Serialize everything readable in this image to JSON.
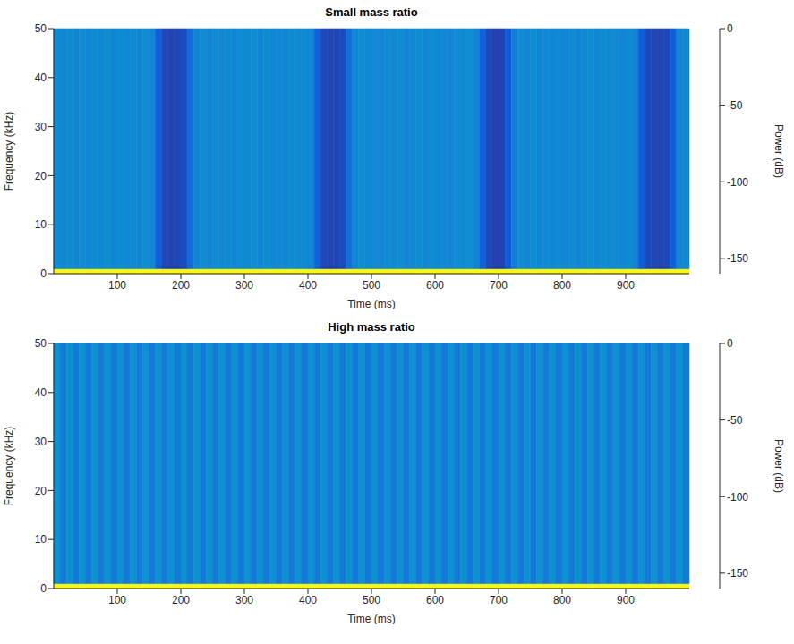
{
  "chart_data": [
    {
      "type": "heatmap",
      "title": "Small mass ratio",
      "x_label": "Time (ms)",
      "y_label": "Frequency (kHz)",
      "xlim": [
        0,
        1000
      ],
      "xticks": [
        100,
        200,
        300,
        400,
        500,
        600,
        700,
        800,
        900
      ],
      "ylim": [
        0,
        50
      ],
      "yticks": [
        0,
        10,
        20,
        30,
        40,
        50
      ],
      "time_bins": [
        0,
        10,
        20,
        30,
        40,
        50,
        60,
        70,
        80,
        90,
        100,
        110,
        120,
        130,
        140,
        150,
        160,
        170,
        180,
        190,
        200,
        210,
        220,
        230,
        240,
        250,
        260,
        270,
        280,
        290,
        300,
        310,
        320,
        330,
        340,
        350,
        360,
        370,
        380,
        390,
        400,
        410,
        420,
        430,
        440,
        450,
        460,
        470,
        480,
        490,
        500,
        510,
        520,
        530,
        540,
        550,
        560,
        570,
        580,
        590,
        600,
        610,
        620,
        630,
        640,
        650,
        660,
        670,
        680,
        690,
        700,
        710,
        720,
        730,
        740,
        750,
        760,
        770,
        780,
        790,
        800,
        810,
        820,
        830,
        840,
        850,
        860,
        870,
        880,
        890,
        900,
        910,
        920,
        930,
        940,
        950,
        960,
        970,
        980,
        990,
        1000
      ],
      "frequency_bins": [
        0,
        1,
        50
      ],
      "cells": [
        [
          -2,
          -2,
          -2,
          -2,
          -2,
          -2,
          -2,
          -2,
          -2,
          -2,
          -2,
          -2,
          -2,
          -2,
          -2,
          -2,
          -2,
          -2,
          -2,
          -2,
          -2,
          -2,
          -2,
          -2,
          -2,
          -2,
          -2,
          -2,
          -2,
          -2,
          -2,
          -2,
          -2,
          -2,
          -2,
          -2,
          -2,
          -2,
          -2,
          -2,
          -2,
          -2,
          -2,
          -2,
          -2,
          -2,
          -2,
          -2,
          -2,
          -2,
          -2,
          -2,
          -2,
          -2,
          -2,
          -2,
          -2,
          -2,
          -2,
          -2,
          -2,
          -2,
          -2,
          -2,
          -2,
          -2,
          -2,
          -2,
          -2,
          -2,
          -2,
          -2,
          -2,
          -2,
          -2,
          -2,
          -2,
          -2,
          -2,
          -2,
          -2,
          -2,
          -2,
          -2,
          -2,
          -2,
          -2,
          -2,
          -2,
          -2,
          -2,
          -2,
          -2,
          -2,
          -2,
          -2,
          -2,
          -2,
          -2,
          -2
        ],
        [
          -114,
          -117,
          -113,
          -116,
          -115,
          -117,
          -113,
          -116,
          -114,
          -117,
          -113,
          -116,
          -115,
          -117,
          -114,
          -118,
          -138,
          -148,
          -150,
          -149,
          -146,
          -132,
          -118,
          -114,
          -117,
          -113,
          -116,
          -115,
          -117,
          -113,
          -116,
          -114,
          -117,
          -113,
          -116,
          -115,
          -117,
          -114,
          -116,
          -113,
          -118,
          -136,
          -148,
          -150,
          -149,
          -147,
          -130,
          -117,
          -113,
          -116,
          -115,
          -117,
          -114,
          -116,
          -113,
          -117,
          -115,
          -114,
          -117,
          -113,
          -116,
          -115,
          -117,
          -114,
          -116,
          -113,
          -119,
          -137,
          -148,
          -151,
          -150,
          -141,
          -122,
          -114,
          -117,
          -113,
          -116,
          -115,
          -117,
          -114,
          -116,
          -113,
          -117,
          -115,
          -114,
          -117,
          -113,
          -116,
          -115,
          -117,
          -114,
          -120,
          -140,
          -147,
          -149,
          -150,
          -148,
          -138,
          -118,
          -115
        ]
      ],
      "clim": [
        -160,
        0
      ],
      "cticks": [
        0,
        -50,
        -100,
        -150
      ],
      "colorbar_label": "Power (dB)"
    },
    {
      "type": "heatmap",
      "title": "High mass ratio",
      "x_label": "Time (ms)",
      "y_label": "Frequency (kHz)",
      "xlim": [
        0,
        1000
      ],
      "xticks": [
        100,
        200,
        300,
        400,
        500,
        600,
        700,
        800,
        900
      ],
      "ylim": [
        0,
        50
      ],
      "yticks": [
        0,
        10,
        20,
        30,
        40,
        50
      ],
      "time_bins": [
        0,
        10,
        20,
        30,
        40,
        50,
        60,
        70,
        80,
        90,
        100,
        110,
        120,
        130,
        140,
        150,
        160,
        170,
        180,
        190,
        200,
        210,
        220,
        230,
        240,
        250,
        260,
        270,
        280,
        290,
        300,
        310,
        320,
        330,
        340,
        350,
        360,
        370,
        380,
        390,
        400,
        410,
        420,
        430,
        440,
        450,
        460,
        470,
        480,
        490,
        500,
        510,
        520,
        530,
        540,
        550,
        560,
        570,
        580,
        590,
        600,
        610,
        620,
        630,
        640,
        650,
        660,
        670,
        680,
        690,
        700,
        710,
        720,
        730,
        740,
        750,
        760,
        770,
        780,
        790,
        800,
        810,
        820,
        830,
        840,
        850,
        860,
        870,
        880,
        890,
        900,
        910,
        920,
        930,
        940,
        950,
        960,
        970,
        980,
        990,
        1000
      ],
      "frequency_bins": [
        0,
        1,
        50
      ],
      "cells": [
        [
          -2,
          -2,
          -2,
          -2,
          -2,
          -2,
          -2,
          -2,
          -2,
          -2,
          -2,
          -2,
          -2,
          -2,
          -2,
          -2,
          -2,
          -2,
          -2,
          -2,
          -2,
          -2,
          -2,
          -2,
          -2,
          -2,
          -2,
          -2,
          -2,
          -2,
          -2,
          -2,
          -2,
          -2,
          -2,
          -2,
          -2,
          -2,
          -2,
          -2,
          -2,
          -2,
          -2,
          -2,
          -2,
          -2,
          -2,
          -2,
          -2,
          -2,
          -2,
          -2,
          -2,
          -2,
          -2,
          -2,
          -2,
          -2,
          -2,
          -2,
          -2,
          -2,
          -2,
          -2,
          -2,
          -2,
          -2,
          -2,
          -2,
          -2,
          -2,
          -2,
          -2,
          -2,
          -2,
          -2,
          -2,
          -2,
          -2,
          -2,
          -2,
          -2,
          -2,
          -2,
          -2,
          -2,
          -2,
          -2,
          -2,
          -2,
          -2,
          -2,
          -2,
          -2,
          -2,
          -2,
          -2,
          -2,
          -2,
          -2
        ],
        [
          -111,
          -124,
          -111,
          -124,
          -111,
          -124,
          -111,
          -124,
          -111,
          -124,
          -111,
          -124,
          -111,
          -124,
          -111,
          -124,
          -111,
          -124,
          -111,
          -124,
          -111,
          -124,
          -111,
          -124,
          -111,
          -124,
          -111,
          -124,
          -111,
          -124,
          -111,
          -124,
          -111,
          -124,
          -111,
          -124,
          -111,
          -124,
          -111,
          -124,
          -111,
          -124,
          -111,
          -124,
          -111,
          -124,
          -111,
          -124,
          -111,
          -124,
          -111,
          -124,
          -111,
          -124,
          -111,
          -124,
          -111,
          -124,
          -111,
          -124,
          -111,
          -124,
          -111,
          -124,
          -111,
          -124,
          -111,
          -124,
          -111,
          -124,
          -111,
          -124,
          -111,
          -124,
          -111,
          -124,
          -111,
          -124,
          -111,
          -124,
          -111,
          -124,
          -111,
          -124,
          -111,
          -124,
          -111,
          -124,
          -111,
          -124,
          -111,
          -124,
          -111,
          -124,
          -111,
          -124,
          -111,
          -124,
          -111,
          -124
        ]
      ],
      "clim": [
        -160,
        0
      ],
      "cticks": [
        0,
        -50,
        -100,
        -150
      ],
      "colorbar_label": "Power (dB)"
    }
  ]
}
